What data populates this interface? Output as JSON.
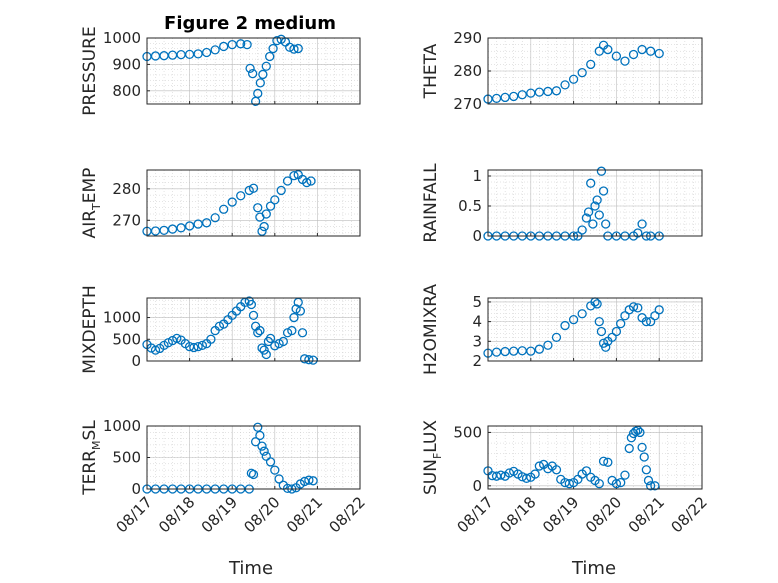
{
  "figure": {
    "title": "Figure 2 medium",
    "xlabel": "Time",
    "marker_color": "#0072BD"
  },
  "chart_data": [
    {
      "type": "scatter",
      "id": "pressure",
      "ylabel": "PRESSURE",
      "xlim": [
        0,
        5
      ],
      "ylim": [
        750,
        1000
      ],
      "yticks": [
        800,
        900,
        1000
      ],
      "xticks": [
        0,
        1,
        2,
        3,
        4,
        5
      ],
      "xticklabels": [
        "08/17",
        "08/18",
        "08/19",
        "08/20",
        "08/21",
        "08/22"
      ],
      "show_xticklabels": false,
      "grid": true,
      "minor_grid": true,
      "points": [
        [
          0,
          930
        ],
        [
          0.2,
          932
        ],
        [
          0.4,
          933
        ],
        [
          0.6,
          935
        ],
        [
          0.8,
          937
        ],
        [
          1.0,
          938
        ],
        [
          1.2,
          940
        ],
        [
          1.4,
          945
        ],
        [
          1.6,
          955
        ],
        [
          1.8,
          968
        ],
        [
          2.0,
          975
        ],
        [
          2.2,
          978
        ],
        [
          2.35,
          975
        ],
        [
          2.42,
          885
        ],
        [
          2.48,
          865
        ],
        [
          2.55,
          760
        ],
        [
          2.6,
          790
        ],
        [
          2.66,
          830
        ],
        [
          2.72,
          862
        ],
        [
          2.8,
          893
        ],
        [
          2.88,
          930
        ],
        [
          2.96,
          960
        ],
        [
          3.05,
          990
        ],
        [
          3.15,
          995
        ],
        [
          3.25,
          985
        ],
        [
          3.35,
          965
        ],
        [
          3.45,
          958
        ],
        [
          3.55,
          960
        ]
      ]
    },
    {
      "type": "scatter",
      "id": "theta",
      "ylabel": "THETA",
      "xlim": [
        0,
        5
      ],
      "ylim": [
        270,
        290
      ],
      "yticks": [
        270,
        280,
        290
      ],
      "xticks": [
        0,
        1,
        2,
        3,
        4,
        5
      ],
      "xticklabels": [
        "08/17",
        "08/18",
        "08/19",
        "08/20",
        "08/21",
        "08/22"
      ],
      "show_xticklabels": false,
      "grid": true,
      "minor_grid": true,
      "points": [
        [
          0,
          271.5
        ],
        [
          0.2,
          271.7
        ],
        [
          0.4,
          272
        ],
        [
          0.6,
          272.3
        ],
        [
          0.8,
          272.8
        ],
        [
          1.0,
          273.3
        ],
        [
          1.2,
          273.6
        ],
        [
          1.4,
          273.8
        ],
        [
          1.6,
          274
        ],
        [
          1.8,
          275.8
        ],
        [
          2.0,
          277.5
        ],
        [
          2.2,
          279.5
        ],
        [
          2.4,
          282
        ],
        [
          2.6,
          286
        ],
        [
          2.7,
          287.8
        ],
        [
          2.8,
          286.5
        ],
        [
          3.0,
          284.5
        ],
        [
          3.2,
          283
        ],
        [
          3.4,
          285
        ],
        [
          3.6,
          286.5
        ],
        [
          3.8,
          286
        ],
        [
          4.0,
          285.3
        ]
      ]
    },
    {
      "type": "scatter",
      "id": "air_temp",
      "ylabel": "AIR",
      "ylabel_sub": "T",
      "ylabel_rest": "EMP",
      "xlim": [
        0,
        5
      ],
      "ylim": [
        265,
        286
      ],
      "yticks": [
        270,
        280
      ],
      "xticks": [
        0,
        1,
        2,
        3,
        4,
        5
      ],
      "xticklabels": [
        "08/17",
        "08/18",
        "08/19",
        "08/20",
        "08/21",
        "08/22"
      ],
      "show_xticklabels": false,
      "grid": true,
      "minor_grid": true,
      "points": [
        [
          0,
          266.5
        ],
        [
          0.2,
          266.6
        ],
        [
          0.4,
          266.8
        ],
        [
          0.6,
          267.2
        ],
        [
          0.8,
          267.6
        ],
        [
          1.0,
          268.2
        ],
        [
          1.2,
          268.8
        ],
        [
          1.4,
          269.2
        ],
        [
          1.6,
          270.8
        ],
        [
          1.8,
          273.5
        ],
        [
          2.0,
          275.8
        ],
        [
          2.2,
          277.8
        ],
        [
          2.4,
          279.5
        ],
        [
          2.5,
          280.2
        ],
        [
          2.6,
          274
        ],
        [
          2.65,
          271
        ],
        [
          2.7,
          266.5
        ],
        [
          2.75,
          268
        ],
        [
          2.8,
          272
        ],
        [
          2.9,
          274.5
        ],
        [
          3.0,
          276.5
        ],
        [
          3.15,
          279.5
        ],
        [
          3.3,
          282.5
        ],
        [
          3.45,
          284.2
        ],
        [
          3.55,
          284.5
        ],
        [
          3.65,
          283
        ],
        [
          3.75,
          282
        ],
        [
          3.85,
          282.5
        ]
      ]
    },
    {
      "type": "scatter",
      "id": "rainfall",
      "ylabel": "RAINFALL",
      "xlim": [
        0,
        5
      ],
      "ylim": [
        0,
        1.1
      ],
      "yticks": [
        0,
        0.5,
        1
      ],
      "xticks": [
        0,
        1,
        2,
        3,
        4,
        5
      ],
      "xticklabels": [
        "08/17",
        "08/18",
        "08/19",
        "08/20",
        "08/21",
        "08/22"
      ],
      "show_xticklabels": false,
      "grid": true,
      "minor_grid": true,
      "points": [
        [
          0,
          0
        ],
        [
          0.2,
          0
        ],
        [
          0.4,
          0
        ],
        [
          0.6,
          0
        ],
        [
          0.8,
          0
        ],
        [
          1.0,
          0
        ],
        [
          1.2,
          0
        ],
        [
          1.4,
          0
        ],
        [
          1.6,
          0
        ],
        [
          1.8,
          0
        ],
        [
          2.0,
          0
        ],
        [
          2.1,
          0
        ],
        [
          2.2,
          0.1
        ],
        [
          2.3,
          0.3
        ],
        [
          2.35,
          0.4
        ],
        [
          2.4,
          0.88
        ],
        [
          2.45,
          0.2
        ],
        [
          2.5,
          0.5
        ],
        [
          2.55,
          0.6
        ],
        [
          2.6,
          0.35
        ],
        [
          2.65,
          1.08
        ],
        [
          2.7,
          0.75
        ],
        [
          2.75,
          0.2
        ],
        [
          2.8,
          0
        ],
        [
          3.0,
          0
        ],
        [
          3.2,
          0
        ],
        [
          3.4,
          0
        ],
        [
          3.5,
          0.05
        ],
        [
          3.6,
          0.2
        ],
        [
          3.7,
          0
        ],
        [
          3.8,
          0
        ],
        [
          4.0,
          0
        ]
      ]
    },
    {
      "type": "scatter",
      "id": "mixdepth",
      "ylabel": "MIXDEPTH",
      "xlim": [
        0,
        5
      ],
      "ylim": [
        0,
        1450
      ],
      "yticks": [
        0,
        500,
        1000
      ],
      "xticks": [
        0,
        1,
        2,
        3,
        4,
        5
      ],
      "xticklabels": [
        "08/17",
        "08/18",
        "08/19",
        "08/20",
        "08/21",
        "08/22"
      ],
      "show_xticklabels": false,
      "grid": true,
      "minor_grid": true,
      "points": [
        [
          0,
          380
        ],
        [
          0.1,
          300
        ],
        [
          0.2,
          250
        ],
        [
          0.3,
          290
        ],
        [
          0.4,
          360
        ],
        [
          0.5,
          420
        ],
        [
          0.6,
          470
        ],
        [
          0.7,
          520
        ],
        [
          0.8,
          480
        ],
        [
          0.9,
          400
        ],
        [
          1.0,
          330
        ],
        [
          1.1,
          310
        ],
        [
          1.2,
          330
        ],
        [
          1.3,
          360
        ],
        [
          1.4,
          400
        ],
        [
          1.5,
          500
        ],
        [
          1.6,
          700
        ],
        [
          1.7,
          800
        ],
        [
          1.8,
          850
        ],
        [
          1.9,
          950
        ],
        [
          2.0,
          1050
        ],
        [
          2.1,
          1150
        ],
        [
          2.2,
          1250
        ],
        [
          2.3,
          1350
        ],
        [
          2.4,
          1380
        ],
        [
          2.45,
          1300
        ],
        [
          2.5,
          1050
        ],
        [
          2.55,
          800
        ],
        [
          2.6,
          650
        ],
        [
          2.65,
          700
        ],
        [
          2.7,
          300
        ],
        [
          2.75,
          250
        ],
        [
          2.8,
          150
        ],
        [
          2.85,
          450
        ],
        [
          2.9,
          520
        ],
        [
          3.0,
          350
        ],
        [
          3.1,
          400
        ],
        [
          3.2,
          450
        ],
        [
          3.3,
          650
        ],
        [
          3.4,
          700
        ],
        [
          3.45,
          1000
        ],
        [
          3.5,
          1200
        ],
        [
          3.55,
          1350
        ],
        [
          3.6,
          1150
        ],
        [
          3.65,
          650
        ],
        [
          3.7,
          50
        ],
        [
          3.8,
          30
        ],
        [
          3.9,
          20
        ]
      ]
    },
    {
      "type": "scatter",
      "id": "h2omixra",
      "ylabel": "H2OMIXRA",
      "xlim": [
        0,
        5
      ],
      "ylim": [
        2,
        5.2
      ],
      "yticks": [
        2,
        3,
        4,
        5
      ],
      "xticks": [
        0,
        1,
        2,
        3,
        4,
        5
      ],
      "xticklabels": [
        "08/17",
        "08/18",
        "08/19",
        "08/20",
        "08/21",
        "08/22"
      ],
      "show_xticklabels": false,
      "grid": true,
      "minor_grid": true,
      "points": [
        [
          0,
          2.4
        ],
        [
          0.2,
          2.45
        ],
        [
          0.4,
          2.48
        ],
        [
          0.6,
          2.5
        ],
        [
          0.8,
          2.52
        ],
        [
          1.0,
          2.5
        ],
        [
          1.2,
          2.6
        ],
        [
          1.4,
          2.8
        ],
        [
          1.6,
          3.2
        ],
        [
          1.8,
          3.8
        ],
        [
          2.0,
          4.1
        ],
        [
          2.2,
          4.4
        ],
        [
          2.4,
          4.8
        ],
        [
          2.5,
          5.0
        ],
        [
          2.55,
          4.9
        ],
        [
          2.6,
          4.0
        ],
        [
          2.65,
          3.5
        ],
        [
          2.7,
          2.9
        ],
        [
          2.75,
          2.7
        ],
        [
          2.8,
          3.0
        ],
        [
          2.9,
          3.2
        ],
        [
          3.0,
          3.5
        ],
        [
          3.1,
          3.9
        ],
        [
          3.2,
          4.3
        ],
        [
          3.3,
          4.6
        ],
        [
          3.4,
          4.75
        ],
        [
          3.5,
          4.7
        ],
        [
          3.6,
          4.2
        ],
        [
          3.7,
          4.0
        ],
        [
          3.8,
          4.0
        ],
        [
          3.9,
          4.3
        ],
        [
          4.0,
          4.6
        ]
      ]
    },
    {
      "type": "scatter",
      "id": "terr_msl",
      "ylabel": "TERR",
      "ylabel_sub": "M",
      "ylabel_rest": "SL",
      "xlim": [
        0,
        5
      ],
      "ylim": [
        0,
        1000
      ],
      "yticks": [
        0,
        500,
        1000
      ],
      "xticks": [
        0,
        1,
        2,
        3,
        4,
        5
      ],
      "xticklabels": [
        "08/17",
        "08/18",
        "08/19",
        "08/20",
        "08/21",
        "08/22"
      ],
      "show_xticklabels": true,
      "grid": true,
      "minor_grid": true,
      "points": [
        [
          0,
          0
        ],
        [
          0.2,
          0
        ],
        [
          0.4,
          0
        ],
        [
          0.6,
          0
        ],
        [
          0.8,
          0
        ],
        [
          1.0,
          0
        ],
        [
          1.2,
          0
        ],
        [
          1.4,
          0
        ],
        [
          1.6,
          0
        ],
        [
          1.8,
          0
        ],
        [
          2.0,
          0
        ],
        [
          2.2,
          0
        ],
        [
          2.4,
          0
        ],
        [
          2.45,
          250
        ],
        [
          2.5,
          230
        ],
        [
          2.55,
          750
        ],
        [
          2.6,
          980
        ],
        [
          2.65,
          850
        ],
        [
          2.7,
          680
        ],
        [
          2.75,
          600
        ],
        [
          2.8,
          520
        ],
        [
          2.9,
          430
        ],
        [
          3.0,
          300
        ],
        [
          3.1,
          160
        ],
        [
          3.2,
          60
        ],
        [
          3.3,
          10
        ],
        [
          3.4,
          0
        ],
        [
          3.5,
          20
        ],
        [
          3.6,
          80
        ],
        [
          3.7,
          120
        ],
        [
          3.8,
          140
        ],
        [
          3.9,
          130
        ]
      ]
    },
    {
      "type": "scatter",
      "id": "sun_flux",
      "ylabel": "SUN",
      "ylabel_sub": "F",
      "ylabel_rest": "LUX",
      "xlim": [
        0,
        5
      ],
      "ylim": [
        -30,
        560
      ],
      "yticks": [
        0,
        500
      ],
      "xticks": [
        0,
        1,
        2,
        3,
        4,
        5
      ],
      "xticklabels": [
        "08/17",
        "08/18",
        "08/19",
        "08/20",
        "08/21",
        "08/22"
      ],
      "show_xticklabels": true,
      "grid": true,
      "minor_grid": true,
      "points": [
        [
          0,
          140
        ],
        [
          0.1,
          95
        ],
        [
          0.2,
          90
        ],
        [
          0.3,
          100
        ],
        [
          0.4,
          90
        ],
        [
          0.5,
          120
        ],
        [
          0.6,
          135
        ],
        [
          0.7,
          110
        ],
        [
          0.8,
          85
        ],
        [
          0.9,
          70
        ],
        [
          1.0,
          80
        ],
        [
          1.1,
          110
        ],
        [
          1.2,
          185
        ],
        [
          1.3,
          200
        ],
        [
          1.4,
          160
        ],
        [
          1.5,
          185
        ],
        [
          1.6,
          150
        ],
        [
          1.7,
          60
        ],
        [
          1.8,
          30
        ],
        [
          1.9,
          20
        ],
        [
          2.0,
          30
        ],
        [
          2.1,
          60
        ],
        [
          2.2,
          110
        ],
        [
          2.3,
          140
        ],
        [
          2.4,
          80
        ],
        [
          2.5,
          50
        ],
        [
          2.6,
          20
        ],
        [
          2.7,
          230
        ],
        [
          2.8,
          220
        ],
        [
          2.9,
          50
        ],
        [
          3.0,
          20
        ],
        [
          3.1,
          30
        ],
        [
          3.2,
          100
        ],
        [
          3.3,
          350
        ],
        [
          3.35,
          450
        ],
        [
          3.4,
          490
        ],
        [
          3.45,
          510
        ],
        [
          3.5,
          520
        ],
        [
          3.55,
          500
        ],
        [
          3.6,
          360
        ],
        [
          3.65,
          270
        ],
        [
          3.7,
          150
        ],
        [
          3.75,
          50
        ],
        [
          3.8,
          0
        ],
        [
          3.9,
          0
        ]
      ]
    }
  ]
}
